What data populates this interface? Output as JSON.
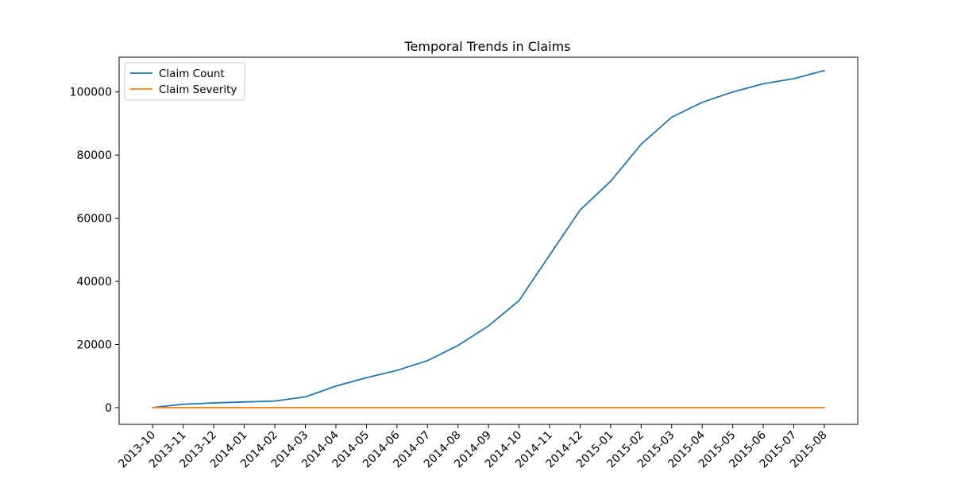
{
  "chart_data": {
    "type": "line",
    "title": "Temporal Trends in Claims",
    "xlabel": "",
    "ylabel": "",
    "categories": [
      "2013-10",
      "2013-11",
      "2013-12",
      "2014-01",
      "2014-02",
      "2014-03",
      "2014-04",
      "2014-05",
      "2014-06",
      "2014-07",
      "2014-08",
      "2014-09",
      "2014-10",
      "2014-11",
      "2014-12",
      "2015-01",
      "2015-02",
      "2015-03",
      "2015-04",
      "2015-05",
      "2015-06",
      "2015-07",
      "2015-08"
    ],
    "series": [
      {
        "name": "Claim Count",
        "color": "#1f77b4",
        "values": [
          0,
          1100,
          1500,
          1800,
          2100,
          3400,
          6800,
          9500,
          11800,
          14900,
          19700,
          25900,
          33900,
          48300,
          62600,
          71700,
          83400,
          92000,
          96700,
          100000,
          102600,
          104200,
          106800
        ]
      },
      {
        "name": "Claim Severity",
        "color": "#ff7f0e",
        "values": [
          0,
          0,
          0,
          0,
          0,
          0,
          0,
          0,
          0,
          0,
          0,
          0,
          0,
          0,
          0,
          0,
          0,
          0,
          0,
          0,
          0,
          0,
          0
        ]
      }
    ],
    "yticks": [
      0,
      20000,
      40000,
      60000,
      80000,
      100000
    ],
    "ylim": [
      -5300,
      111000
    ],
    "grid": false,
    "legend_position": "top-left"
  }
}
